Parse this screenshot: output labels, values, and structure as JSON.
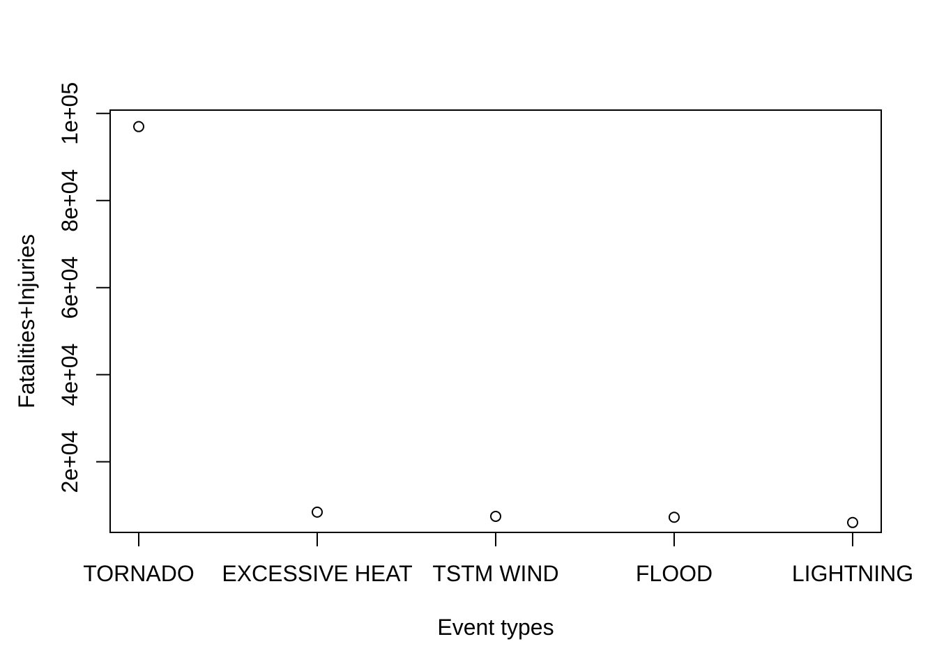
{
  "chart_data": {
    "type": "scatter",
    "title": "",
    "xlabel": "Event types",
    "ylabel": "Fatalities+Injuries",
    "categories": [
      "TORNADO",
      "EXCESSIVE HEAT",
      "TSTM WIND",
      "FLOOD",
      "LIGHTNING"
    ],
    "values": [
      96979,
      8428,
      7461,
      7259,
      6046
    ],
    "ylim": [
      3770,
      100770
    ],
    "y_ticks": [
      20000,
      40000,
      60000,
      80000,
      100000
    ],
    "y_tick_labels": [
      "2e+04",
      "4e+04",
      "6e+04",
      "8e+04",
      "1e+05"
    ],
    "marker": "open-circle",
    "grid": false,
    "legend": "none"
  }
}
